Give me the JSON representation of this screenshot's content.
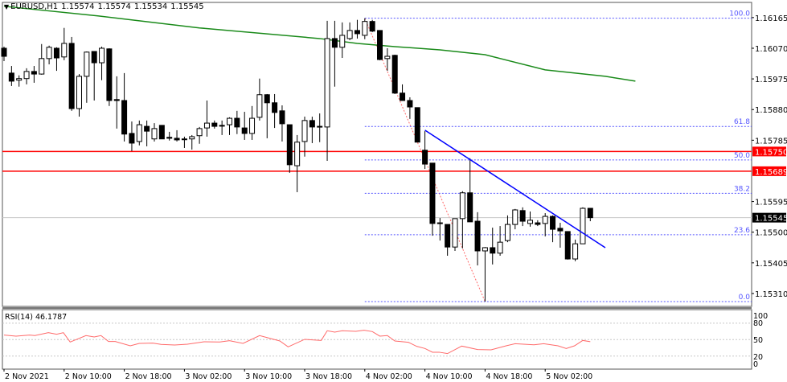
{
  "header": {
    "symbol": "EURUSD,H1",
    "open": "1.15574",
    "high": "1.15574",
    "low": "1.15534",
    "close": "1.15545"
  },
  "rsi_panel": {
    "label": "RSI(14)",
    "value": "46.1787"
  },
  "colors": {
    "bull_body": "#ffffff",
    "bear_body": "#000000",
    "ma": "#1a8a1a",
    "resistance": "#ff0000",
    "trendline": "#0000ff",
    "fib": "#5555ff",
    "rsi": "#ff6a6a"
  },
  "chart_data": {
    "type": "candlestick",
    "price_range": [
      1.1527,
      1.16212
    ],
    "price_ticks": [
      "1.16165",
      "1.16070",
      "1.15975",
      "1.15880",
      "1.15785",
      "1.15595",
      "1.15500",
      "1.15405",
      "1.15310"
    ],
    "time_ticks": [
      {
        "index": 0,
        "label": "2 Nov 2021"
      },
      {
        "index": 8,
        "label": "2 Nov 10:00"
      },
      {
        "index": 16,
        "label": "2 Nov 18:00"
      },
      {
        "index": 24,
        "label": "3 Nov 02:00"
      },
      {
        "index": 32,
        "label": "3 Nov 10:00"
      },
      {
        "index": 40,
        "label": "3 Nov 18:00"
      },
      {
        "index": 48,
        "label": "4 Nov 02:00"
      },
      {
        "index": 56,
        "label": "4 Nov 10:00"
      },
      {
        "index": 64,
        "label": "4 Nov 18:00"
      },
      {
        "index": 72,
        "label": "5 Nov 02:00"
      }
    ],
    "candles_ohlc": [
      [
        1.1607,
        1.16075,
        1.1603,
        1.16045
      ],
      [
        1.15993,
        1.16015,
        1.15953,
        1.15968
      ],
      [
        1.15971,
        1.15986,
        1.15951,
        1.15976
      ],
      [
        1.15976,
        1.16008,
        1.15958,
        1.15998
      ],
      [
        1.15998,
        1.16015,
        1.15963,
        1.1599
      ],
      [
        1.1599,
        1.16083,
        1.15988,
        1.16038
      ],
      [
        1.16038,
        1.16078,
        1.1602,
        1.16073
      ],
      [
        1.1607,
        1.16073,
        1.16,
        1.1604
      ],
      [
        1.16043,
        1.16133,
        1.16033,
        1.16085
      ],
      [
        1.16085,
        1.16105,
        1.15876,
        1.15883
      ],
      [
        1.15883,
        1.1599,
        1.15858,
        1.15983
      ],
      [
        1.15983,
        1.1606,
        1.15901,
        1.16058
      ],
      [
        1.1606,
        1.1606,
        1.15908,
        1.16025
      ],
      [
        1.16025,
        1.16075,
        1.15971,
        1.1607
      ],
      [
        1.16068,
        1.1607,
        1.15891,
        1.15908
      ],
      [
        1.15911,
        1.15983,
        1.15821,
        1.15908
      ],
      [
        1.15908,
        1.15993,
        1.15781,
        1.15804
      ],
      [
        1.15806,
        1.15843,
        1.15751,
        1.15776
      ],
      [
        1.15781,
        1.15846,
        1.15769,
        1.15833
      ],
      [
        1.15828,
        1.15846,
        1.15766,
        1.15813
      ],
      [
        1.15789,
        1.15838,
        1.15781,
        1.15821
      ],
      [
        1.15831,
        1.15831,
        1.15789,
        1.15789
      ],
      [
        1.15794,
        1.15811,
        1.15784,
        1.15791
      ],
      [
        1.15791,
        1.15816,
        1.15781,
        1.15786
      ],
      [
        1.15789,
        1.15796,
        1.15761,
        1.15789
      ],
      [
        1.15789,
        1.15801,
        1.15756,
        1.15796
      ],
      [
        1.15799,
        1.15826,
        1.15774,
        1.15821
      ],
      [
        1.15823,
        1.15908,
        1.15796,
        1.15838
      ],
      [
        1.15838,
        1.15846,
        1.15821,
        1.15828
      ],
      [
        1.15831,
        1.15846,
        1.15801,
        1.15831
      ],
      [
        1.15833,
        1.15856,
        1.15801,
        1.15853
      ],
      [
        1.15853,
        1.15876,
        1.15804,
        1.15826
      ],
      [
        1.15823,
        1.15873,
        1.15786,
        1.15806
      ],
      [
        1.15806,
        1.15891,
        1.15786,
        1.15853
      ],
      [
        1.15856,
        1.15976,
        1.15846,
        1.15926
      ],
      [
        1.15926,
        1.15928,
        1.15791,
        1.15901
      ],
      [
        1.15901,
        1.15928,
        1.15823,
        1.15871
      ],
      [
        1.15876,
        1.15893,
        1.15781,
        1.15836
      ],
      [
        1.15833,
        1.15833,
        1.15684,
        1.15709
      ],
      [
        1.15706,
        1.15801,
        1.15624,
        1.15779
      ],
      [
        1.15781,
        1.15858,
        1.15734,
        1.15846
      ],
      [
        1.15846,
        1.15858,
        1.15776,
        1.15826
      ],
      [
        1.15828,
        1.15868,
        1.15779,
        1.15828
      ],
      [
        1.15826,
        1.16155,
        1.15721,
        1.161
      ],
      [
        1.161,
        1.16155,
        1.15951,
        1.16073
      ],
      [
        1.16073,
        1.1615,
        1.1604,
        1.1611
      ],
      [
        1.161,
        1.1615,
        1.16095,
        1.16125
      ],
      [
        1.16125,
        1.16158,
        1.161,
        1.16115
      ],
      [
        1.1611,
        1.16163,
        1.16098,
        1.16153
      ],
      [
        1.16153,
        1.16158,
        1.1612,
        1.16123
      ],
      [
        1.16125,
        1.16125,
        1.16033,
        1.16035
      ],
      [
        1.16038,
        1.1607,
        1.16,
        1.16045
      ],
      [
        1.16048,
        1.1605,
        1.15928,
        1.15931
      ],
      [
        1.15931,
        1.15958,
        1.15908,
        1.15908
      ],
      [
        1.15908,
        1.15918,
        1.15851,
        1.15888
      ],
      [
        1.15886,
        1.15886,
        1.15779,
        1.15779
      ],
      [
        1.15754,
        1.15813,
        1.15696,
        1.15711
      ],
      [
        1.15714,
        1.15714,
        1.15489,
        1.15527
      ],
      [
        1.15529,
        1.15544,
        1.15474,
        1.15529
      ],
      [
        1.15524,
        1.15524,
        1.15427,
        1.15454
      ],
      [
        1.15454,
        1.15542,
        1.15442,
        1.15542
      ],
      [
        1.15542,
        1.15627,
        1.1545,
        1.15622
      ],
      [
        1.15622,
        1.15729,
        1.15532,
        1.15532
      ],
      [
        1.15534,
        1.15562,
        1.15397,
        1.15442
      ],
      [
        1.15442,
        1.15454,
        1.15285,
        1.15452
      ],
      [
        1.15452,
        1.15514,
        1.154,
        1.15435
      ],
      [
        1.15435,
        1.15519,
        1.15427,
        1.15469
      ],
      [
        1.15474,
        1.15552,
        1.15469,
        1.15524
      ],
      [
        1.15524,
        1.15572,
        1.15509,
        1.15569
      ],
      [
        1.15567,
        1.15577,
        1.15519,
        1.15534
      ],
      [
        1.15527,
        1.15564,
        1.15517,
        1.15537
      ],
      [
        1.15529,
        1.15537,
        1.15519,
        1.15524
      ],
      [
        1.15527,
        1.15559,
        1.15487,
        1.15549
      ],
      [
        1.15549,
        1.15552,
        1.15469,
        1.15509
      ],
      [
        1.15512,
        1.15529,
        1.15452,
        1.15504
      ],
      [
        1.15502,
        1.15502,
        1.15415,
        1.15417
      ],
      [
        1.15417,
        1.15477,
        1.1541,
        1.15464
      ],
      [
        1.15464,
        1.15577,
        1.15464,
        1.15574
      ],
      [
        1.15574,
        1.15574,
        1.15534,
        1.15545
      ]
    ],
    "moving_average": [
      [
        0,
        1.162
      ],
      [
        12.6,
        1.1617
      ],
      [
        26,
        1.16133
      ],
      [
        42,
        1.161
      ],
      [
        47,
        1.16085
      ],
      [
        52,
        1.16075
      ],
      [
        58,
        1.16065
      ],
      [
        64,
        1.1605
      ],
      [
        72,
        1.16003
      ],
      [
        80,
        1.15983
      ],
      [
        84,
        1.15968
      ]
    ],
    "horizontal_levels": [
      {
        "price": 1.1575,
        "label": "1.15750"
      },
      {
        "price": 1.15689,
        "label": "1.15689"
      }
    ],
    "current_price": {
      "price": 1.15545,
      "label": "1.15545"
    },
    "trendline": [
      [
        56,
        1.15816
      ],
      [
        80,
        1.15452
      ]
    ],
    "fibonacci": {
      "from_index": 48,
      "to_index": 64,
      "high": 1.16163,
      "low": 1.15285,
      "levels": [
        {
          "ratio": 1.0,
          "label": "100.0"
        },
        {
          "ratio": 0.618,
          "label": "61.8"
        },
        {
          "ratio": 0.5,
          "label": "50.0"
        },
        {
          "ratio": 0.382,
          "label": "38.2"
        },
        {
          "ratio": 0.236,
          "label": "23.6"
        },
        {
          "ratio": 0.0,
          "label": "0.0"
        }
      ]
    },
    "rsi": {
      "ticks": [
        "100",
        "80",
        "50",
        "20",
        "0"
      ],
      "levels": [
        80,
        50,
        20
      ],
      "points": [
        [
          0,
          58.3
        ],
        [
          1.6,
          56.4
        ],
        [
          3.4,
          58.3
        ],
        [
          4.1,
          57.4
        ],
        [
          5.9,
          62.7
        ],
        [
          7,
          59.8
        ],
        [
          7.9,
          62.7
        ],
        [
          8.8,
          45.6
        ],
        [
          10.9,
          57.4
        ],
        [
          12,
          54.9
        ],
        [
          12.9,
          57.4
        ],
        [
          13.9,
          46.6
        ],
        [
          14.8,
          46.6
        ],
        [
          16.8,
          38.7
        ],
        [
          18,
          43.1
        ],
        [
          19.8,
          43.6
        ],
        [
          20.9,
          41.2
        ],
        [
          22.7,
          40.2
        ],
        [
          24.4,
          41.7
        ],
        [
          26.6,
          46.1
        ],
        [
          28.7,
          45.6
        ],
        [
          30,
          48
        ],
        [
          31.8,
          43.1
        ],
        [
          34,
          57.4
        ],
        [
          36.7,
          47.5
        ],
        [
          37.8,
          36.8
        ],
        [
          40,
          50.5
        ],
        [
          42.2,
          48.5
        ],
        [
          43,
          66.2
        ],
        [
          44,
          63.7
        ],
        [
          45,
          66.2
        ],
        [
          46.8,
          65.2
        ],
        [
          47.9,
          67.2
        ],
        [
          49,
          64.7
        ],
        [
          50,
          56.4
        ],
        [
          51,
          57.4
        ],
        [
          52,
          47.5
        ],
        [
          53.8,
          45.1
        ],
        [
          54.9,
          37.7
        ],
        [
          56,
          33.8
        ],
        [
          57,
          27
        ],
        [
          57.9,
          27
        ],
        [
          59,
          24.5
        ],
        [
          60.9,
          38.2
        ],
        [
          63,
          31.9
        ],
        [
          64.8,
          31.4
        ],
        [
          66.8,
          38.7
        ],
        [
          68,
          42.6
        ],
        [
          70.5,
          40.6
        ],
        [
          71.8,
          42.6
        ],
        [
          73.7,
          38.7
        ],
        [
          74.8,
          33.8
        ],
        [
          75.9,
          38.7
        ],
        [
          77,
          48.5
        ],
        [
          78,
          46.18
        ]
      ]
    }
  }
}
